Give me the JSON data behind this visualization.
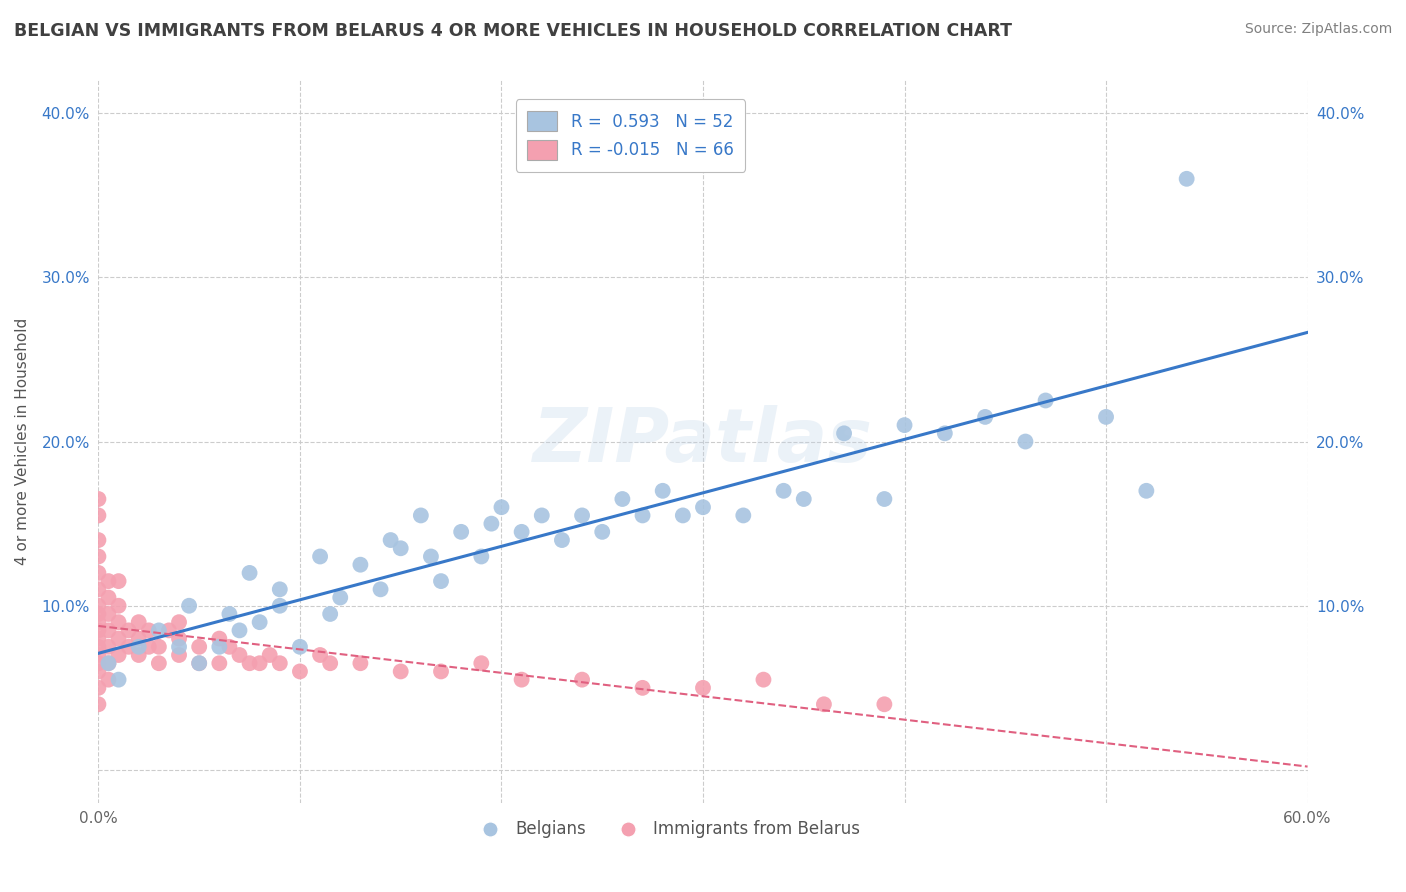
{
  "title": "BELGIAN VS IMMIGRANTS FROM BELARUS 4 OR MORE VEHICLES IN HOUSEHOLD CORRELATION CHART",
  "source": "Source: ZipAtlas.com",
  "ylabel": "4 or more Vehicles in Household",
  "watermark": "ZIPatlas",
  "belgians_R": 0.593,
  "belgians_N": 52,
  "immigrants_R": -0.015,
  "immigrants_N": 66,
  "xlim": [
    0.0,
    0.6
  ],
  "ylim": [
    -0.02,
    0.42
  ],
  "xticks": [
    0.0,
    0.1,
    0.2,
    0.3,
    0.4,
    0.5,
    0.6
  ],
  "yticks": [
    0.0,
    0.1,
    0.2,
    0.3,
    0.4
  ],
  "belgian_color": "#a8c4e0",
  "immigrant_color": "#f4a0b0",
  "belgian_line_color": "#3878c8",
  "immigrant_line_color": "#e06080",
  "background_color": "#ffffff",
  "grid_color": "#cccccc",
  "title_color": "#404040",
  "source_color": "#808080",
  "legend_value_color": "#3878c8",
  "belgians_x": [
    0.005,
    0.01,
    0.02,
    0.03,
    0.04,
    0.045,
    0.05,
    0.06,
    0.065,
    0.07,
    0.075,
    0.08,
    0.09,
    0.09,
    0.1,
    0.11,
    0.115,
    0.12,
    0.13,
    0.14,
    0.145,
    0.15,
    0.16,
    0.165,
    0.17,
    0.18,
    0.19,
    0.195,
    0.2,
    0.21,
    0.22,
    0.23,
    0.24,
    0.25,
    0.26,
    0.27,
    0.28,
    0.29,
    0.3,
    0.32,
    0.34,
    0.35,
    0.37,
    0.39,
    0.4,
    0.42,
    0.44,
    0.46,
    0.47,
    0.5,
    0.52,
    0.54
  ],
  "belgians_y": [
    0.065,
    0.055,
    0.075,
    0.085,
    0.075,
    0.1,
    0.065,
    0.075,
    0.095,
    0.085,
    0.12,
    0.09,
    0.1,
    0.11,
    0.075,
    0.13,
    0.095,
    0.105,
    0.125,
    0.11,
    0.14,
    0.135,
    0.155,
    0.13,
    0.115,
    0.145,
    0.13,
    0.15,
    0.16,
    0.145,
    0.155,
    0.14,
    0.155,
    0.145,
    0.165,
    0.155,
    0.17,
    0.155,
    0.16,
    0.155,
    0.17,
    0.165,
    0.205,
    0.165,
    0.21,
    0.205,
    0.215,
    0.2,
    0.225,
    0.215,
    0.17,
    0.36
  ],
  "immigrants_x": [
    0.0,
    0.0,
    0.0,
    0.0,
    0.0,
    0.0,
    0.0,
    0.0,
    0.0,
    0.0,
    0.0,
    0.0,
    0.0,
    0.0,
    0.0,
    0.0,
    0.0,
    0.005,
    0.005,
    0.005,
    0.005,
    0.005,
    0.005,
    0.005,
    0.01,
    0.01,
    0.01,
    0.01,
    0.01,
    0.015,
    0.015,
    0.02,
    0.02,
    0.02,
    0.025,
    0.025,
    0.03,
    0.03,
    0.035,
    0.04,
    0.04,
    0.04,
    0.05,
    0.05,
    0.06,
    0.06,
    0.065,
    0.07,
    0.075,
    0.08,
    0.085,
    0.09,
    0.1,
    0.11,
    0.115,
    0.13,
    0.15,
    0.17,
    0.19,
    0.21,
    0.24,
    0.27,
    0.3,
    0.33,
    0.36,
    0.39
  ],
  "immigrants_y": [
    0.04,
    0.05,
    0.06,
    0.065,
    0.07,
    0.075,
    0.08,
    0.085,
    0.09,
    0.095,
    0.1,
    0.11,
    0.12,
    0.13,
    0.14,
    0.155,
    0.165,
    0.055,
    0.065,
    0.075,
    0.085,
    0.095,
    0.105,
    0.115,
    0.07,
    0.08,
    0.09,
    0.1,
    0.115,
    0.075,
    0.085,
    0.07,
    0.08,
    0.09,
    0.075,
    0.085,
    0.065,
    0.075,
    0.085,
    0.07,
    0.08,
    0.09,
    0.065,
    0.075,
    0.065,
    0.08,
    0.075,
    0.07,
    0.065,
    0.065,
    0.07,
    0.065,
    0.06,
    0.07,
    0.065,
    0.065,
    0.06,
    0.06,
    0.065,
    0.055,
    0.055,
    0.05,
    0.05,
    0.055,
    0.04,
    0.04
  ]
}
